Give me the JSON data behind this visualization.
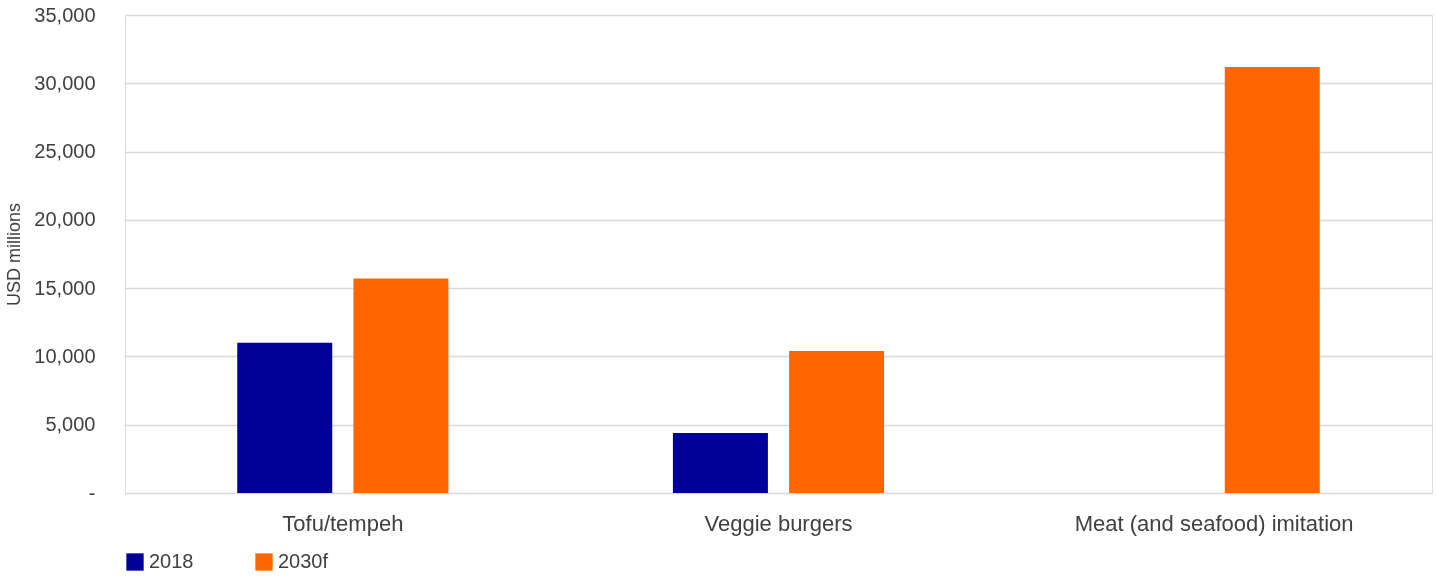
{
  "chart_data": {
    "type": "bar",
    "ylabel": "USD millions",
    "categories": [
      "Tofu/tempeh",
      "Veggie burgers",
      "Meat (and seafood) imitation"
    ],
    "series": [
      {
        "name": "2018",
        "color": "#000099",
        "values": [
          11000,
          4400,
          null
        ]
      },
      {
        "name": "2030f",
        "color": "#ff6600",
        "values": [
          15700,
          10400,
          31200
        ]
      }
    ],
    "ylim": [
      0,
      35000
    ],
    "yticks": [
      {
        "value": 0,
        "label": "-"
      },
      {
        "value": 5000,
        "label": "5,000"
      },
      {
        "value": 10000,
        "label": "10,000"
      },
      {
        "value": 15000,
        "label": "15,000"
      },
      {
        "value": 20000,
        "label": "20,000"
      },
      {
        "value": 25000,
        "label": "25,000"
      },
      {
        "value": 30000,
        "label": "30,000"
      },
      {
        "value": 35000,
        "label": "35,000"
      }
    ],
    "grid": "y",
    "legend": "bottom"
  }
}
